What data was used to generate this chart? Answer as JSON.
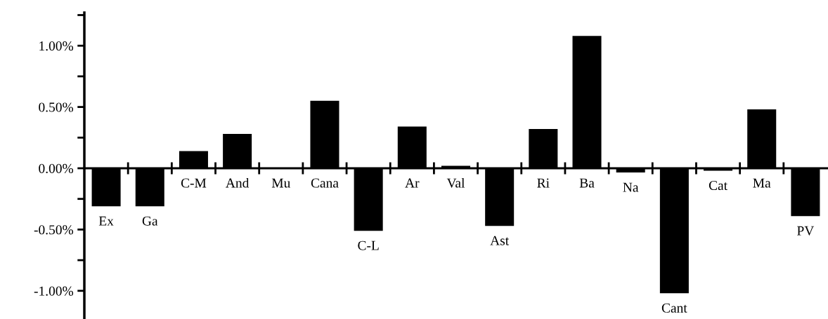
{
  "chart_data": {
    "type": "bar",
    "categories": [
      "Ex",
      "Ga",
      "C-M",
      "And",
      "Mu",
      "Cana",
      "C-L",
      "Ar",
      "Val",
      "Ast",
      "Ri",
      "Ba",
      "Na",
      "Cant",
      "Cat",
      "Ma",
      "PV"
    ],
    "values": [
      -0.31,
      -0.31,
      0.14,
      0.28,
      0,
      0.55,
      -0.51,
      0.34,
      0.02,
      -0.47,
      0.32,
      1.08,
      -0.035,
      -1.02,
      -0.02,
      0.48,
      -0.39
    ],
    "color": "#000000",
    "ylim": [
      -1.23,
      1.27
    ],
    "yticks": [
      {
        "value": -1.0,
        "label": "-1.00%"
      },
      {
        "value": -0.75,
        "label": null
      },
      {
        "value": -0.5,
        "label": "-0.50%"
      },
      {
        "value": -0.25,
        "label": null
      },
      {
        "value": 0,
        "label": "0.00%"
      },
      {
        "value": 0.25,
        "label": null
      },
      {
        "value": 0.5,
        "label": "0.50%"
      },
      {
        "value": 0.75,
        "label": null
      },
      {
        "value": 1.0,
        "label": "1.00%"
      },
      {
        "value": 1.25,
        "label": null
      }
    ],
    "grid": false
  }
}
